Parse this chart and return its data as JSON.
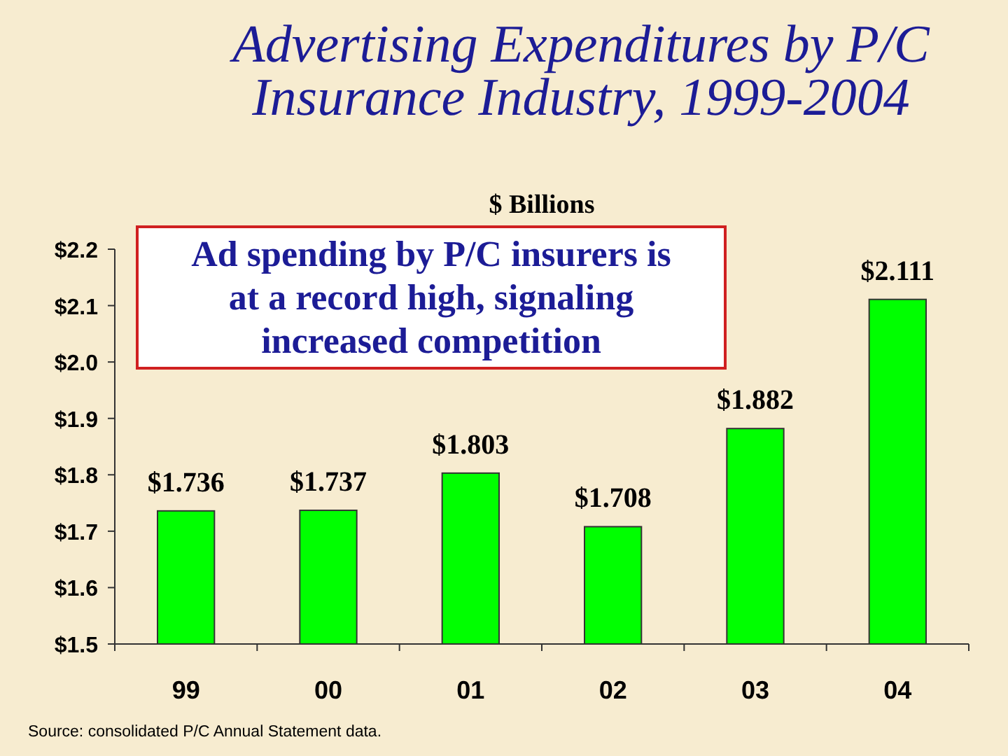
{
  "chart_data": {
    "type": "bar",
    "title": "Advertising Expenditures by P/C Insurance Industry, 1999-2004",
    "ylabel": "$ Billions",
    "categories": [
      "99",
      "00",
      "01",
      "02",
      "03",
      "04"
    ],
    "values": [
      1.736,
      1.737,
      1.803,
      1.708,
      1.882,
      2.111
    ],
    "value_labels": [
      "$1.736",
      "$1.737",
      "$1.803",
      "$1.708",
      "$1.882",
      "$2.111"
    ],
    "color": "#00ff00",
    "ylim": [
      1.5,
      2.2
    ],
    "yticks": [
      {
        "value": 1.5,
        "label": "$1.5"
      },
      {
        "value": 1.6,
        "label": "$1.6"
      },
      {
        "value": 1.7,
        "label": "$1.7"
      },
      {
        "value": 1.8,
        "label": "$1.8"
      },
      {
        "value": 1.9,
        "label": "$1.9"
      },
      {
        "value": 2.0,
        "label": "$2.0"
      },
      {
        "value": 2.1,
        "label": "$2.1"
      },
      {
        "value": 2.2,
        "label": "$2.2"
      }
    ],
    "grid": false,
    "annotations": [
      "Ad spending by P/C insurers is at a record high, signaling increased competition",
      "Source: consolidated P/C Annual Statement data."
    ]
  }
}
